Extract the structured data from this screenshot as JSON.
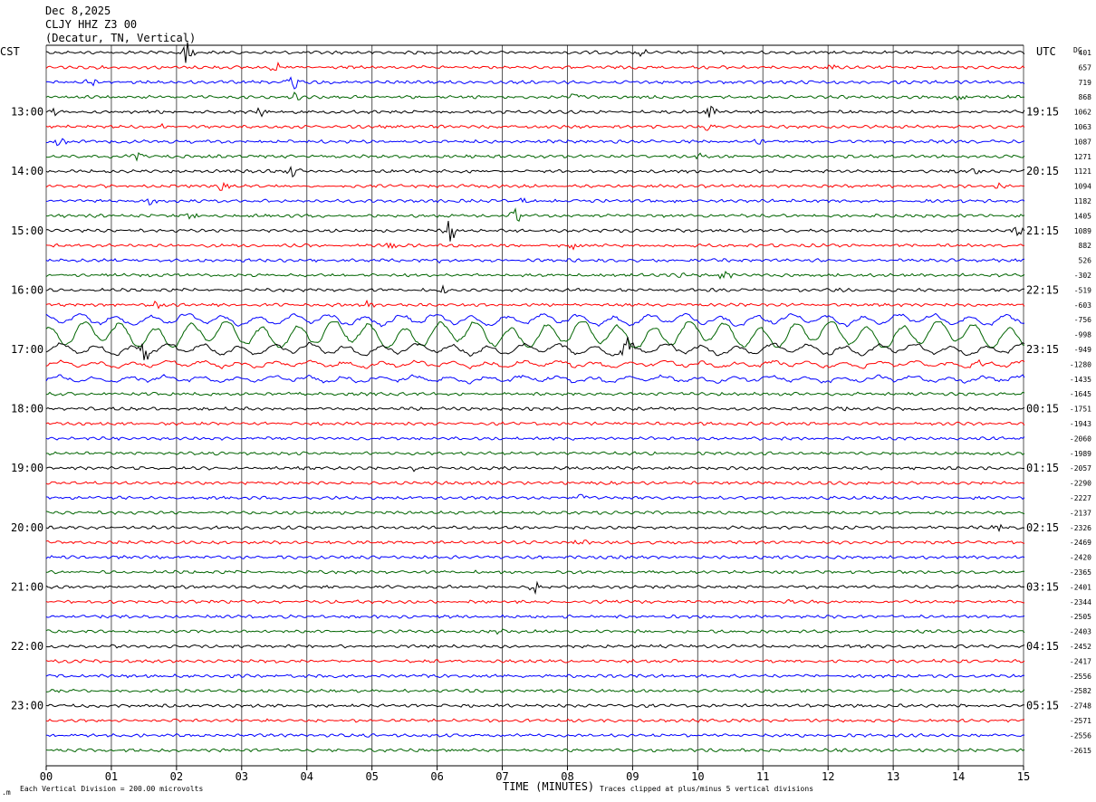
{
  "header": {
    "date": "Dec 8,2025",
    "station": "CLJY HHZ Z3 00",
    "location": "(Decatur, TN, Vertical)"
  },
  "left_zone": "CST",
  "right_zone": "UTC",
  "dc_label": "DC",
  "footer": {
    "division": "Each Vertical Division =  200.00 microvolts",
    "xlabel": "TIME (MINUTES)",
    "clip_note": "Traces clipped at plus/minus 5 vertical divisions"
  },
  "colors": {
    "black": "#000000",
    "red": "#ff0000",
    "blue": "#0000ff",
    "green": "#006400"
  },
  "chart_data": {
    "type": "line",
    "description_of_series": "helicorder traces, one per 15 minutes, colors cycle black/red/blue/green",
    "xlim": [
      0,
      15
    ],
    "x_ticks": [
      "00",
      "01",
      "02",
      "03",
      "04",
      "05",
      "06",
      "07",
      "08",
      "09",
      "10",
      "11",
      "12",
      "13",
      "14",
      "15"
    ],
    "left_hours": [
      {
        "row": 4,
        "label": "13:00"
      },
      {
        "row": 8,
        "label": "14:00"
      },
      {
        "row": 12,
        "label": "15:00"
      },
      {
        "row": 16,
        "label": "16:00"
      },
      {
        "row": 20,
        "label": "17:00"
      },
      {
        "row": 24,
        "label": "18:00"
      },
      {
        "row": 28,
        "label": "19:00"
      },
      {
        "row": 32,
        "label": "20:00"
      },
      {
        "row": 36,
        "label": "21:00"
      },
      {
        "row": 40,
        "label": "22:00"
      },
      {
        "row": 44,
        "label": "23:00"
      }
    ],
    "right_hours": [
      {
        "row": 4,
        "label": "19:15"
      },
      {
        "row": 8,
        "label": "20:15"
      },
      {
        "row": 12,
        "label": "21:15"
      },
      {
        "row": 16,
        "label": "22:15"
      },
      {
        "row": 20,
        "label": "23:15"
      },
      {
        "row": 24,
        "label": "00:15"
      },
      {
        "row": 28,
        "label": "01:15"
      },
      {
        "row": 32,
        "label": "02:15"
      },
      {
        "row": 36,
        "label": "03:15"
      },
      {
        "row": 40,
        "label": "04:15"
      },
      {
        "row": 44,
        "label": "05:15"
      }
    ],
    "dc_offsets": [
      "401",
      "657",
      "719",
      "868",
      "1062",
      "1063",
      "1087",
      "1271",
      "1121",
      "1094",
      "1182",
      "1405",
      "1089",
      "882",
      "526",
      "-302",
      "-519",
      "-603",
      "-756",
      "-998",
      "-949",
      "-1280",
      "-1435",
      "-1645",
      "-1751",
      "-1943",
      "-2060",
      "-1989",
      "-2057",
      "-2290",
      "-2227",
      "-2137",
      "-2326",
      "-2469",
      "-2420",
      "-2365",
      "-2401",
      "-2344",
      "-2505",
      "-2403",
      "-2452",
      "-2417",
      "-2556",
      "-2582",
      "-2748",
      "-2571",
      "-2556",
      "-2615"
    ],
    "events": [
      {
        "row": 0,
        "minute": 2.15,
        "amp": 1.2
      },
      {
        "row": 0,
        "minute": 9.1,
        "amp": 0.4
      },
      {
        "row": 1,
        "minute": 3.5,
        "amp": 0.4
      },
      {
        "row": 1,
        "minute": 12.0,
        "amp": 0.35
      },
      {
        "row": 2,
        "minute": 3.8,
        "amp": 1.1
      },
      {
        "row": 2,
        "minute": 0.7,
        "amp": 0.35
      },
      {
        "row": 3,
        "minute": 3.8,
        "amp": 0.6
      },
      {
        "row": 3,
        "minute": 14.0,
        "amp": 0.5
      },
      {
        "row": 3,
        "minute": 8.1,
        "amp": 0.35
      },
      {
        "row": 4,
        "minute": 3.3,
        "amp": 0.6
      },
      {
        "row": 4,
        "minute": 10.2,
        "amp": 0.7
      },
      {
        "row": 4,
        "minute": 0.1,
        "amp": 0.4
      },
      {
        "row": 5,
        "minute": 10.15,
        "amp": 0.5
      },
      {
        "row": 5,
        "minute": 1.8,
        "amp": 0.35
      },
      {
        "row": 6,
        "minute": 10.95,
        "amp": 0.5
      },
      {
        "row": 6,
        "minute": 0.2,
        "amp": 0.35
      },
      {
        "row": 7,
        "minute": 1.4,
        "amp": 0.5
      },
      {
        "row": 7,
        "minute": 10.0,
        "amp": 0.35
      },
      {
        "row": 8,
        "minute": 3.8,
        "amp": 0.55
      },
      {
        "row": 8,
        "minute": 14.3,
        "amp": 0.4
      },
      {
        "row": 9,
        "minute": 2.7,
        "amp": 0.45
      },
      {
        "row": 9,
        "minute": 14.6,
        "amp": 0.35
      },
      {
        "row": 10,
        "minute": 1.6,
        "amp": 0.4
      },
      {
        "row": 10,
        "minute": 7.3,
        "amp": 0.35
      },
      {
        "row": 11,
        "minute": 7.2,
        "amp": 0.8
      },
      {
        "row": 11,
        "minute": 2.2,
        "amp": 0.6
      },
      {
        "row": 12,
        "minute": 6.2,
        "amp": 1.2
      },
      {
        "row": 12,
        "minute": 14.9,
        "amp": 0.6
      },
      {
        "row": 13,
        "minute": 5.3,
        "amp": 0.45
      },
      {
        "row": 13,
        "minute": 8.1,
        "amp": 0.45
      },
      {
        "row": 14,
        "minute": 6.0,
        "amp": 0.35
      },
      {
        "row": 15,
        "minute": 9.8,
        "amp": 0.4
      },
      {
        "row": 15,
        "minute": 10.4,
        "amp": 0.4
      },
      {
        "row": 16,
        "minute": 6.1,
        "amp": 0.5
      },
      {
        "row": 16,
        "minute": 12.2,
        "amp": 0.4
      },
      {
        "row": 17,
        "minute": 1.7,
        "amp": 0.5
      },
      {
        "row": 17,
        "minute": 4.9,
        "amp": 0.55
      },
      {
        "row": 20,
        "minute": 8.9,
        "amp": 1.3
      },
      {
        "row": 20,
        "minute": 1.5,
        "amp": 1.0
      },
      {
        "row": 21,
        "minute": 14.3,
        "amp": 0.6
      },
      {
        "row": 23,
        "minute": 0.3,
        "amp": 0.4
      },
      {
        "row": 24,
        "minute": 12.2,
        "amp": 0.4
      },
      {
        "row": 28,
        "minute": 5.7,
        "amp": 0.4
      },
      {
        "row": 30,
        "minute": 8.2,
        "amp": 0.35
      },
      {
        "row": 32,
        "minute": 14.6,
        "amp": 0.45
      },
      {
        "row": 33,
        "minute": 8.2,
        "amp": 0.5
      },
      {
        "row": 36,
        "minute": 7.5,
        "amp": 0.7
      },
      {
        "row": 37,
        "minute": 11.4,
        "amp": 0.35
      },
      {
        "row": 39,
        "minute": 6.9,
        "amp": 0.4
      },
      {
        "row": 38,
        "minute": 7.0,
        "amp": 0.35
      }
    ],
    "grid": true
  }
}
